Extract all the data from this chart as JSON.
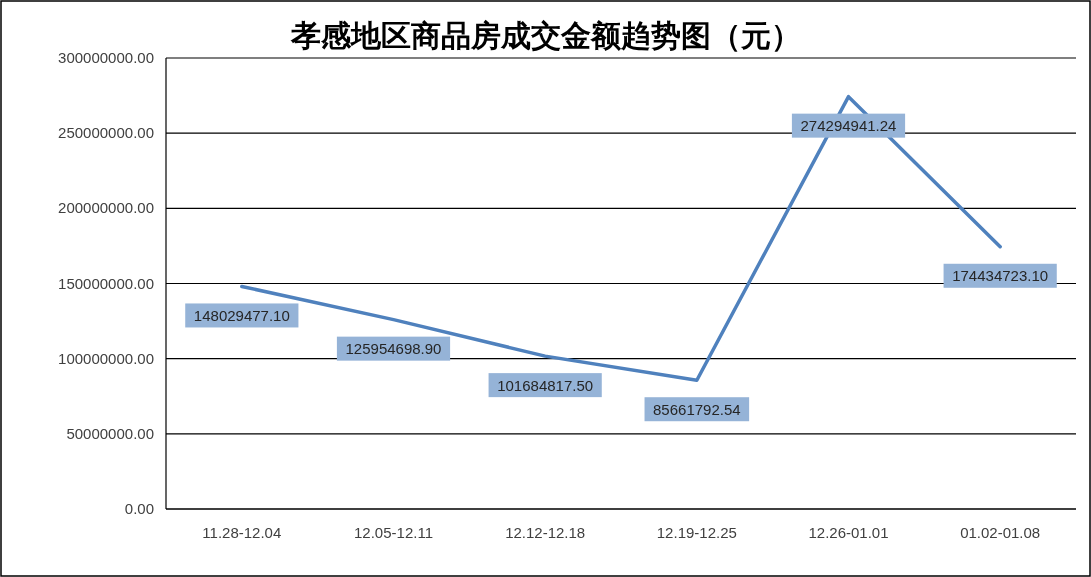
{
  "chart_data": {
    "type": "line",
    "title": "孝感地区商品房成交金额趋势图（元）",
    "categories": [
      "11.28-12.04",
      "12.05-12.11",
      "12.12-12.18",
      "12.19-12.25",
      "12.26-01.01",
      "01.02-01.08"
    ],
    "series": [
      {
        "color": "#4f81bd",
        "values": [
          148029477.1,
          125954698.9,
          101684817.5,
          85661792.54,
          274294941.24,
          174434723.1
        ],
        "value_labels": [
          "148029477.10",
          "125954698.90",
          "101684817.50",
          "85661792.54",
          "274294941.24",
          "174434723.10"
        ]
      }
    ],
    "ylim": [
      0,
      300000000
    ],
    "yticks": [
      {
        "value": 0,
        "label": "0.00"
      },
      {
        "value": 50000000,
        "label": "50000000.00"
      },
      {
        "value": 100000000,
        "label": "100000000.00"
      },
      {
        "value": 150000000,
        "label": "150000000.00"
      },
      {
        "value": 200000000,
        "label": "200000000.00"
      },
      {
        "value": 250000000,
        "label": "250000000.00"
      },
      {
        "value": 300000000,
        "label": "300000000.00"
      }
    ],
    "grid": "y",
    "marker": "none",
    "line_style": "solid"
  }
}
